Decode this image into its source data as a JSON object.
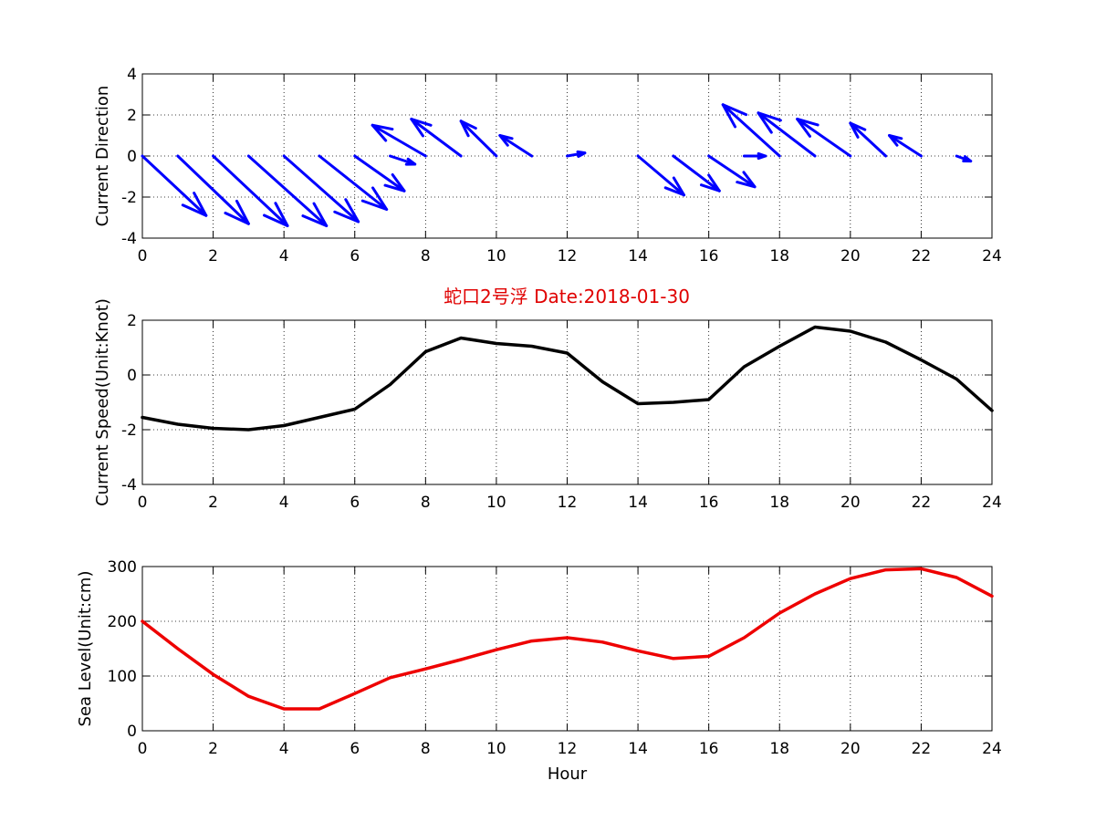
{
  "figure": {
    "title": "蛇口2号浮   Date:2018-01-30",
    "title_color": "#e00000",
    "background": "#ffffff"
  },
  "chart_data": [
    {
      "id": "direction",
      "type": "quiver",
      "title": "",
      "xlabel": "",
      "ylabel": "Current Direction",
      "xlim": [
        0,
        24
      ],
      "ylim": [
        -4,
        4
      ],
      "xticks": [
        0,
        2,
        4,
        6,
        8,
        10,
        12,
        14,
        16,
        18,
        20,
        22,
        24
      ],
      "yticks": [
        -4,
        -2,
        0,
        2,
        4
      ],
      "grid": true,
      "color": "#0000ff",
      "vectors": [
        {
          "x": 0,
          "u": 1.8,
          "v": -2.9
        },
        {
          "x": 1,
          "u": 2.0,
          "v": -3.3
        },
        {
          "x": 2,
          "u": 2.1,
          "v": -3.4
        },
        {
          "x": 3,
          "u": 2.2,
          "v": -3.4
        },
        {
          "x": 4,
          "u": 2.1,
          "v": -3.2
        },
        {
          "x": 5,
          "u": 1.9,
          "v": -2.6
        },
        {
          "x": 6,
          "u": 1.4,
          "v": -1.7
        },
        {
          "x": 7,
          "u": 0.7,
          "v": -0.4
        },
        {
          "x": 8,
          "u": -1.5,
          "v": 1.5
        },
        {
          "x": 9,
          "u": -1.4,
          "v": 1.8
        },
        {
          "x": 10,
          "u": -1.0,
          "v": 1.7
        },
        {
          "x": 11,
          "u": -0.9,
          "v": 1.0
        },
        {
          "x": 12,
          "u": 0.5,
          "v": 0.15
        },
        {
          "x": 14,
          "u": 1.3,
          "v": -1.9
        },
        {
          "x": 15,
          "u": 1.3,
          "v": -1.7
        },
        {
          "x": 16,
          "u": 1.3,
          "v": -1.5
        },
        {
          "x": 17,
          "u": 0.6,
          "v": 0.0
        },
        {
          "x": 18,
          "u": -1.6,
          "v": 2.5
        },
        {
          "x": 19,
          "u": -1.6,
          "v": 2.1
        },
        {
          "x": 20,
          "u": -1.5,
          "v": 1.8
        },
        {
          "x": 21,
          "u": -1.0,
          "v": 1.6
        },
        {
          "x": 22,
          "u": -0.9,
          "v": 1.0
        },
        {
          "x": 23,
          "u": 0.4,
          "v": -0.25
        }
      ]
    },
    {
      "id": "speed",
      "type": "line",
      "title": "",
      "xlabel": "",
      "ylabel": "Current Speed(Unit:Knot)",
      "xlim": [
        0,
        24
      ],
      "ylim": [
        -4,
        2
      ],
      "xticks": [
        0,
        2,
        4,
        6,
        8,
        10,
        12,
        14,
        16,
        18,
        20,
        22,
        24
      ],
      "yticks": [
        -4,
        -2,
        0,
        2
      ],
      "grid": true,
      "color": "#000000",
      "x": [
        0,
        1,
        2,
        3,
        4,
        5,
        6,
        7,
        8,
        9,
        10,
        11,
        12,
        13,
        14,
        15,
        16,
        17,
        18,
        19,
        20,
        21,
        22,
        23,
        24
      ],
      "y": [
        -1.55,
        -1.8,
        -1.95,
        -2.0,
        -1.85,
        -1.55,
        -1.25,
        -0.35,
        0.85,
        1.35,
        1.15,
        1.05,
        0.8,
        -0.25,
        -1.05,
        -1.0,
        -0.9,
        0.3,
        1.05,
        1.75,
        1.6,
        1.2,
        0.55,
        -0.15,
        -1.3
      ]
    },
    {
      "id": "sealevel",
      "type": "line",
      "title": "",
      "xlabel": "Hour",
      "ylabel": "Sea Level(Unit:cm)",
      "xlim": [
        0,
        24
      ],
      "ylim": [
        0,
        300
      ],
      "xticks": [
        0,
        2,
        4,
        6,
        8,
        10,
        12,
        14,
        16,
        18,
        20,
        22,
        24
      ],
      "yticks": [
        0,
        100,
        200,
        300
      ],
      "grid": true,
      "color": "#ee0000",
      "x": [
        0,
        1,
        2,
        3,
        4,
        5,
        6,
        7,
        8,
        9,
        10,
        11,
        12,
        13,
        14,
        15,
        16,
        17,
        18,
        19,
        20,
        21,
        22,
        23,
        24
      ],
      "y": [
        200,
        150,
        103,
        63,
        40,
        40,
        68,
        97,
        113,
        130,
        148,
        164,
        170,
        162,
        146,
        132,
        136,
        170,
        215,
        250,
        278,
        294,
        296,
        280,
        246
      ]
    }
  ]
}
